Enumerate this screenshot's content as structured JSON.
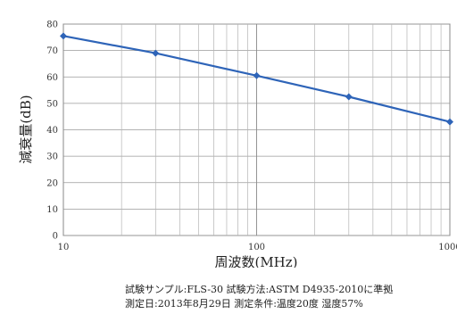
{
  "chart_data": {
    "type": "line",
    "xscale": "log",
    "xlabel": "周波数(MHz)",
    "ylabel": "減衰量(dB)",
    "xlim": [
      10,
      1000
    ],
    "ylim": [
      0,
      80
    ],
    "xticks": [
      "10",
      "100",
      "1000"
    ],
    "yticks": [
      "0",
      "10",
      "20",
      "30",
      "40",
      "50",
      "60",
      "70",
      "80"
    ],
    "grid": true,
    "series": [
      {
        "color": "#2e64b8",
        "x": [
          10,
          30,
          100,
          300,
          1000
        ],
        "y": [
          75.5,
          69,
          60.5,
          52.5,
          43
        ]
      }
    ]
  },
  "notes": {
    "line1": "試験サンプル:FLS-30  試験方法:ASTM D4935-2010に準拠",
    "line2": "測定日:2013年8月29日  測定条件:温度20度 湿度57%"
  }
}
